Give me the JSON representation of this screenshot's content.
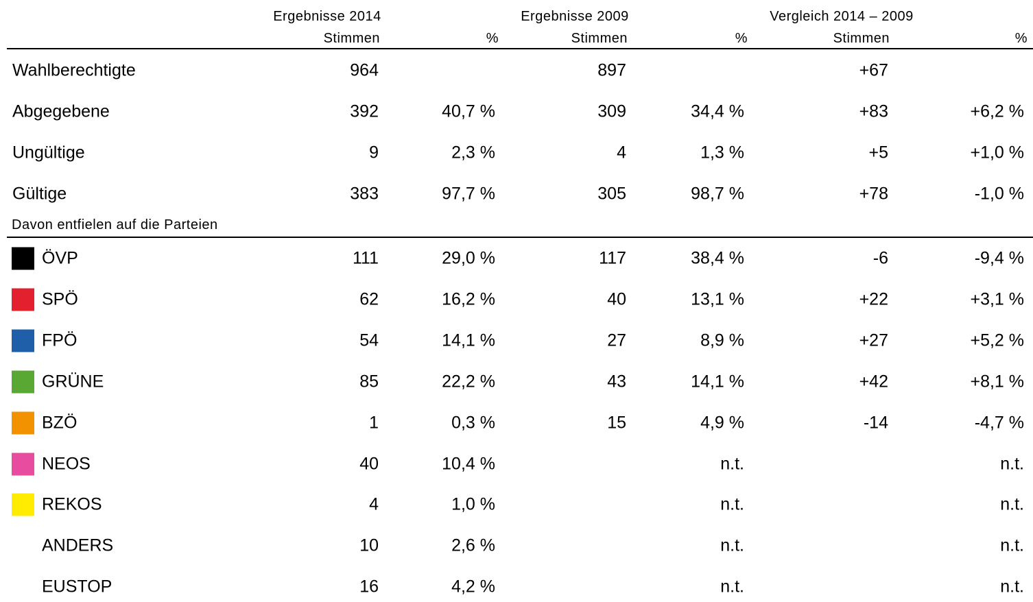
{
  "header": {
    "groups": [
      "Ergebnisse 2014",
      "Ergebnisse 2009",
      "Vergleich 2014 – 2009"
    ],
    "columns": [
      "Stimmen",
      "%",
      "Stimmen",
      "%",
      "Stimmen",
      "%"
    ]
  },
  "summary_rows": [
    {
      "label": "Wahlberechtigte",
      "cells": [
        "964",
        null,
        "897",
        null,
        "+67",
        null
      ]
    },
    {
      "label": "Abgegebene",
      "cells": [
        "392",
        "40,7 %",
        "309",
        "34,4 %",
        "+83",
        "+6,2 %"
      ]
    },
    {
      "label": "Ungültige",
      "cells": [
        "9",
        "2,3 %",
        "4",
        "1,3 %",
        "+5",
        "+1,0 %"
      ]
    },
    {
      "label": "Gültige",
      "cells": [
        "383",
        "97,7 %",
        "305",
        "98,7 %",
        "+78",
        "-1,0 %"
      ]
    }
  ],
  "section_label": "Davon entfielen auf die Parteien",
  "party_rows": [
    {
      "label": "ÖVP",
      "color": "#000000",
      "cells": [
        "111",
        "29,0 %",
        "117",
        "38,4 %",
        "-6",
        "-9,4 %"
      ]
    },
    {
      "label": "SPÖ",
      "color": "#e3202e",
      "cells": [
        "62",
        "16,2 %",
        "40",
        "13,1 %",
        "+22",
        "+3,1 %"
      ]
    },
    {
      "label": "FPÖ",
      "color": "#1f5ea8",
      "cells": [
        "54",
        "14,1 %",
        "27",
        "8,9 %",
        "+27",
        "+5,2 %"
      ]
    },
    {
      "label": "GRÜNE",
      "color": "#58a833",
      "cells": [
        "85",
        "22,2 %",
        "43",
        "14,1 %",
        "+42",
        "+8,1 %"
      ]
    },
    {
      "label": "BZÖ",
      "color": "#f39200",
      "cells": [
        "1",
        "0,3 %",
        "15",
        "4,9 %",
        "-14",
        "-4,7 %"
      ]
    },
    {
      "label": "NEOS",
      "color": "#e84c9e",
      "cells": [
        "40",
        "10,4 %",
        null,
        "n.t.",
        null,
        "n.t."
      ]
    },
    {
      "label": "REKOS",
      "color": "#ffec00",
      "cells": [
        "4",
        "1,0 %",
        null,
        "n.t.",
        null,
        "n.t."
      ]
    },
    {
      "label": "ANDERS",
      "cells": [
        "10",
        "2,6 %",
        null,
        "n.t.",
        null,
        "n.t."
      ]
    },
    {
      "label": "EUSTOP",
      "cells": [
        "16",
        "4,2 %",
        null,
        "n.t.",
        null,
        "n.t."
      ]
    }
  ]
}
